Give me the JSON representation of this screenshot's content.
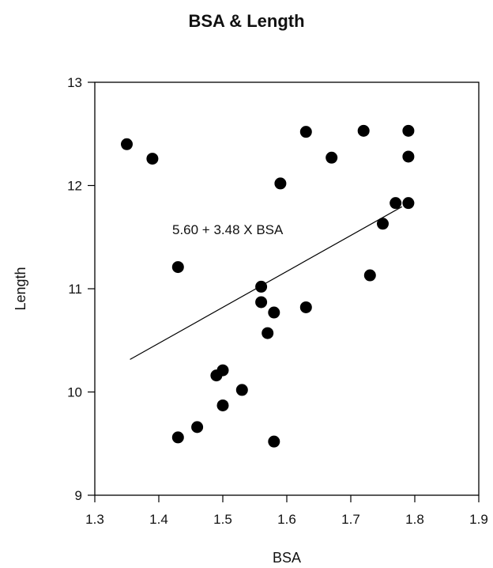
{
  "chart_data": {
    "type": "scatter",
    "title": "BSA & Length",
    "xlabel": "BSA",
    "ylabel": "Length",
    "xlim": [
      1.3,
      1.9
    ],
    "ylim": [
      9,
      13
    ],
    "xticks": [
      "1.3",
      "1.4",
      "1.5",
      "1.6",
      "1.7",
      "1.8",
      "1.9"
    ],
    "yticks": [
      "9",
      "10",
      "11",
      "12",
      "13"
    ],
    "grid": false,
    "points": [
      {
        "x": 1.35,
        "y": 12.4
      },
      {
        "x": 1.39,
        "y": 12.26
      },
      {
        "x": 1.43,
        "y": 11.21
      },
      {
        "x": 1.43,
        "y": 9.56
      },
      {
        "x": 1.46,
        "y": 9.66
      },
      {
        "x": 1.49,
        "y": 10.16
      },
      {
        "x": 1.5,
        "y": 10.21
      },
      {
        "x": 1.5,
        "y": 9.87
      },
      {
        "x": 1.53,
        "y": 10.02
      },
      {
        "x": 1.56,
        "y": 11.02
      },
      {
        "x": 1.56,
        "y": 10.87
      },
      {
        "x": 1.57,
        "y": 10.57
      },
      {
        "x": 1.58,
        "y": 10.77
      },
      {
        "x": 1.58,
        "y": 9.52
      },
      {
        "x": 1.59,
        "y": 12.02
      },
      {
        "x": 1.63,
        "y": 12.52
      },
      {
        "x": 1.63,
        "y": 10.82
      },
      {
        "x": 1.67,
        "y": 12.27
      },
      {
        "x": 1.72,
        "y": 12.53
      },
      {
        "x": 1.73,
        "y": 11.13
      },
      {
        "x": 1.75,
        "y": 11.63
      },
      {
        "x": 1.77,
        "y": 11.83
      },
      {
        "x": 1.79,
        "y": 12.28
      },
      {
        "x": 1.79,
        "y": 12.53
      },
      {
        "x": 1.79,
        "y": 11.83
      }
    ],
    "regression": {
      "intercept": 5.6,
      "slope": 3.48,
      "x_start": 1.355,
      "x_end": 1.78
    },
    "annotation": "5.60 + 3.48 X BSA"
  }
}
